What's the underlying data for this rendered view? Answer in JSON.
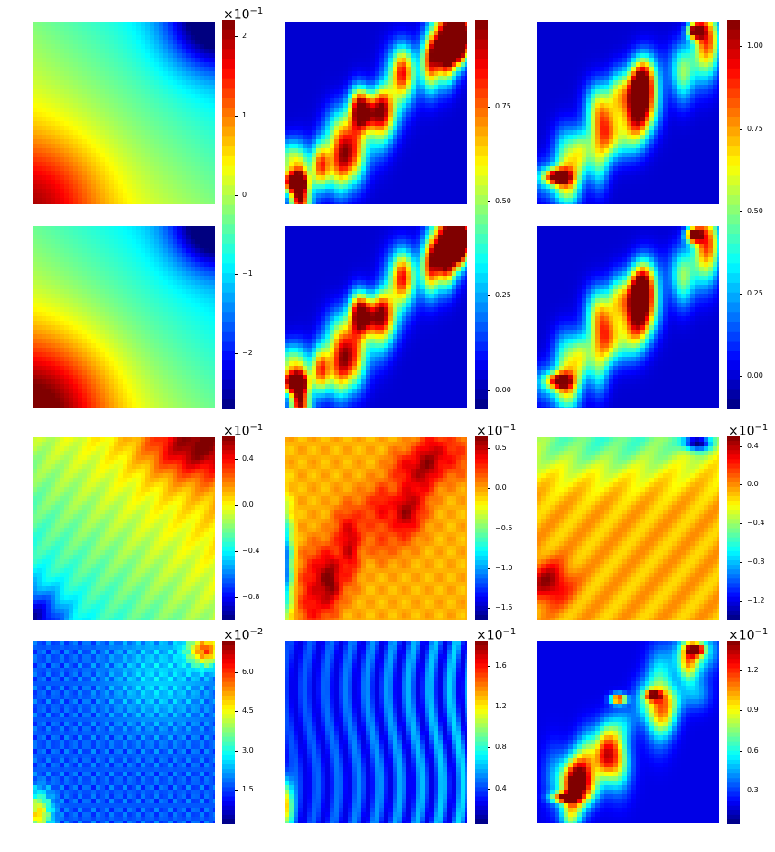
{
  "chart_data": {
    "type": "heatmap",
    "colormap": "jet",
    "grid": "3 columns x 4 rows of contour maps, each row group sharing a colorbar to its right",
    "colorbars": [
      {
        "id": "cb-r12c1",
        "exponent_base": "×10",
        "exponent": "−1",
        "range": [
          -2.7,
          2.2
        ],
        "ticks": [
          2,
          1,
          0,
          -1,
          -2
        ],
        "tick_labels": [
          "2",
          "1",
          "0",
          "−1",
          "−2"
        ]
      },
      {
        "id": "cb-r12c2",
        "exponent_base": "",
        "exponent": "",
        "range": [
          -0.05,
          0.98
        ],
        "ticks": [
          0.75,
          0.5,
          0.25,
          0.0
        ],
        "tick_labels": [
          "0.75",
          "0.50",
          "0.25",
          "0.00"
        ]
      },
      {
        "id": "cb-r12c3",
        "exponent_base": "",
        "exponent": "",
        "range": [
          -0.1,
          1.08
        ],
        "ticks": [
          1.0,
          0.75,
          0.5,
          0.25,
          0.0
        ],
        "tick_labels": [
          "1.00",
          "0.75",
          "0.50",
          "0.25",
          "0.00"
        ]
      },
      {
        "id": "cb-r3c1",
        "exponent_base": "×10",
        "exponent": "−1",
        "range": [
          -1.0,
          0.6
        ],
        "ticks": [
          0.4,
          0.0,
          -0.4,
          -0.8
        ],
        "tick_labels": [
          "0.4",
          "0.0",
          "−0.4",
          "−0.8"
        ]
      },
      {
        "id": "cb-r3c2",
        "exponent_base": "×10",
        "exponent": "−1",
        "range": [
          -1.65,
          0.65
        ],
        "ticks": [
          0.5,
          0.0,
          -0.5,
          -1.0,
          -1.5
        ],
        "tick_labels": [
          "0.5",
          "0.0",
          "−0.5",
          "−1.0",
          "−1.5"
        ]
      },
      {
        "id": "cb-r3c3",
        "exponent_base": "×10",
        "exponent": "−1",
        "range": [
          -1.4,
          0.5
        ],
        "ticks": [
          0.4,
          0.0,
          -0.4,
          -0.8,
          -1.2
        ],
        "tick_labels": [
          "0.4",
          "0.0",
          "−0.4",
          "−0.8",
          "−1.2"
        ]
      },
      {
        "id": "cb-r4c1",
        "exponent_base": "×10",
        "exponent": "−2",
        "range": [
          0.2,
          7.2
        ],
        "ticks": [
          6.0,
          4.5,
          3.0,
          1.5
        ],
        "tick_labels": [
          "6.0",
          "4.5",
          "3.0",
          "1.5"
        ]
      },
      {
        "id": "cb-r4c2",
        "exponent_base": "×10",
        "exponent": "−1",
        "range": [
          0.05,
          1.85
        ],
        "ticks": [
          1.6,
          1.2,
          0.8,
          0.4
        ],
        "tick_labels": [
          "1.6",
          "1.2",
          "0.8",
          "0.4"
        ]
      },
      {
        "id": "cb-r4c3",
        "exponent_base": "×10",
        "exponent": "−1",
        "range": [
          0.05,
          1.42
        ],
        "ticks": [
          1.2,
          0.9,
          0.6,
          0.3
        ],
        "tick_labels": [
          "1.2",
          "0.9",
          "0.6",
          "0.3"
        ]
      }
    ],
    "panels": [
      {
        "id": "p-r1c1",
        "pattern": "diagonal gradient: low (blue) top-right, high (orange/red) bottom-left, mostly green/yellow"
      },
      {
        "id": "p-r1c2",
        "pattern": "mostly blue with cyan diagonal streaks, red hot spots bottom-left and top-right"
      },
      {
        "id": "p-r1c3",
        "pattern": "mostly blue with cyan diagonal band, red spots top-right and lower-left"
      },
      {
        "id": "p-r2c1",
        "pattern": "same as r1c1: blue top-right, red bottom-left"
      },
      {
        "id": "p-r2c2",
        "pattern": "same as r1c2: streaky cyan, red at bottom-left and top-right"
      },
      {
        "id": "p-r2c3",
        "pattern": "same as r1c3: red spots top-right and lower-left"
      },
      {
        "id": "p-r3c1",
        "pattern": "red/orange top-right, yellow middle, cyan/blue bottom-left"
      },
      {
        "id": "p-r3c2",
        "pattern": "yellow/orange field with red diagonal streak, blue left edge"
      },
      {
        "id": "p-r3c3",
        "pattern": "orange/yellow with cyan top, blue at top-right, red bottom-left"
      },
      {
        "id": "p-r4c1",
        "pattern": "blue with speckled cyan, yellow/red at top-right and bottom-left corners"
      },
      {
        "id": "p-r4c2",
        "pattern": "blue with vertical cyan streaks, yellow left edge"
      },
      {
        "id": "p-r4c3",
        "pattern": "blue with cyan diagonal band, red hot spots top-right, center and lower-left"
      }
    ]
  }
}
